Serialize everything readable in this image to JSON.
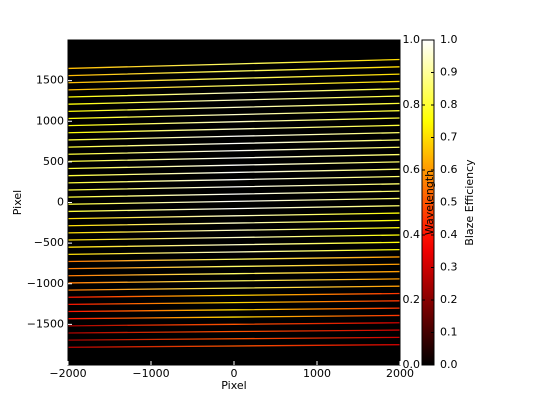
{
  "chart_data": {
    "type": "line",
    "x_label": "Pixel",
    "y_label": "Pixel",
    "x": [
      -2000,
      0,
      2000
    ],
    "xlim": [
      -2000,
      2000
    ],
    "xticks": [
      {
        "value": -2000,
        "label": "−2000"
      },
      {
        "value": -1000,
        "label": "−1000"
      },
      0,
      1000,
      2000
    ],
    "ylim": [
      -2000,
      2000
    ],
    "yticks": [
      {
        "value": -1500,
        "label": "−1500"
      },
      {
        "value": -1000,
        "label": "−1000"
      },
      {
        "value": -500,
        "label": "−500"
      },
      0,
      500,
      1000,
      1500
    ],
    "background": "#000000",
    "colormap": "hot",
    "series": [
      {
        "values": [
          1650,
          1705,
          1760
        ],
        "efficiency": [
          0.65,
          0.85,
          0.7
        ]
      },
      {
        "values": [
          1562,
          1616,
          1670
        ],
        "efficiency": [
          0.65,
          0.85,
          0.7
        ]
      },
      {
        "values": [
          1474,
          1527,
          1580
        ],
        "efficiency": [
          0.65,
          0.85,
          0.7
        ]
      },
      {
        "values": [
          1386,
          1438,
          1490
        ],
        "efficiency": [
          0.65,
          0.85,
          0.7
        ]
      },
      {
        "values": [
          1298,
          1349,
          1400
        ],
        "efficiency": [
          0.75,
          0.95,
          0.8
        ]
      },
      {
        "values": [
          1210,
          1260,
          1310
        ],
        "efficiency": [
          0.75,
          0.95,
          0.8
        ]
      },
      {
        "values": [
          1122,
          1171,
          1220
        ],
        "efficiency": [
          0.75,
          0.95,
          0.8
        ]
      },
      {
        "values": [
          1034,
          1082,
          1130
        ],
        "efficiency": [
          0.75,
          0.95,
          0.8
        ]
      },
      {
        "values": [
          946,
          993,
          1040
        ],
        "efficiency": [
          0.75,
          0.95,
          0.8
        ]
      },
      {
        "values": [
          858,
          904,
          950
        ],
        "efficiency": [
          0.75,
          0.95,
          0.8
        ]
      },
      {
        "values": [
          770,
          815,
          860
        ],
        "efficiency": [
          0.8,
          1.0,
          0.85
        ]
      },
      {
        "values": [
          682,
          726,
          770
        ],
        "efficiency": [
          0.8,
          1.0,
          0.85
        ]
      },
      {
        "values": [
          594,
          637,
          680
        ],
        "efficiency": [
          0.8,
          1.0,
          0.85
        ]
      },
      {
        "values": [
          506,
          548,
          590
        ],
        "efficiency": [
          0.8,
          1.0,
          0.85
        ]
      },
      {
        "values": [
          418,
          459,
          500
        ],
        "efficiency": [
          0.8,
          1.0,
          0.85
        ]
      },
      {
        "values": [
          330,
          370,
          410
        ],
        "efficiency": [
          0.8,
          1.0,
          0.85
        ]
      },
      {
        "values": [
          242,
          281,
          320
        ],
        "efficiency": [
          0.8,
          1.0,
          0.85
        ]
      },
      {
        "values": [
          154,
          192,
          230
        ],
        "efficiency": [
          0.8,
          1.0,
          0.85
        ]
      },
      {
        "values": [
          66,
          103,
          140
        ],
        "efficiency": [
          0.8,
          1.0,
          0.85
        ]
      },
      {
        "values": [
          -22,
          14,
          50
        ],
        "efficiency": [
          0.8,
          1.0,
          0.85
        ]
      },
      {
        "values": [
          -110,
          -75,
          -40
        ],
        "efficiency": [
          0.8,
          1.0,
          0.85
        ]
      },
      {
        "values": [
          -198,
          -164,
          -130
        ],
        "efficiency": [
          0.7,
          0.95,
          0.75
        ]
      },
      {
        "values": [
          -286,
          -253,
          -220
        ],
        "efficiency": [
          0.7,
          0.95,
          0.75
        ]
      },
      {
        "values": [
          -374,
          -342,
          -310
        ],
        "efficiency": [
          0.7,
          0.95,
          0.75
        ]
      },
      {
        "values": [
          -462,
          -431,
          -400
        ],
        "efficiency": [
          0.7,
          0.95,
          0.75
        ]
      },
      {
        "values": [
          -550,
          -520,
          -490
        ],
        "efficiency": [
          0.7,
          0.95,
          0.75
        ]
      },
      {
        "values": [
          -638,
          -609,
          -580
        ],
        "efficiency": [
          0.7,
          0.95,
          0.75
        ]
      },
      {
        "values": [
          -726,
          -698,
          -670
        ],
        "efficiency": [
          0.55,
          0.85,
          0.6
        ]
      },
      {
        "values": [
          -814,
          -787,
          -760
        ],
        "efficiency": [
          0.55,
          0.85,
          0.6
        ]
      },
      {
        "values": [
          -902,
          -876,
          -850
        ],
        "efficiency": [
          0.55,
          0.85,
          0.6
        ]
      },
      {
        "values": [
          -990,
          -965,
          -940
        ],
        "efficiency": [
          0.55,
          0.85,
          0.6
        ]
      },
      {
        "values": [
          -1078,
          -1054,
          -1030
        ],
        "efficiency": [
          0.55,
          0.85,
          0.6
        ]
      },
      {
        "values": [
          -1166,
          -1143,
          -1120
        ],
        "efficiency": [
          0.4,
          0.7,
          0.45
        ]
      },
      {
        "values": [
          -1254,
          -1232,
          -1210
        ],
        "efficiency": [
          0.4,
          0.7,
          0.45
        ]
      },
      {
        "values": [
          -1342,
          -1321,
          -1300
        ],
        "efficiency": [
          0.4,
          0.7,
          0.45
        ]
      },
      {
        "values": [
          -1430,
          -1410,
          -1390
        ],
        "efficiency": [
          0.4,
          0.7,
          0.45
        ]
      },
      {
        "values": [
          -1518,
          -1499,
          -1480
        ],
        "efficiency": [
          0.25,
          0.5,
          0.3
        ]
      },
      {
        "values": [
          -1606,
          -1588,
          -1570
        ],
        "efficiency": [
          0.25,
          0.5,
          0.3
        ]
      },
      {
        "values": [
          -1694,
          -1677,
          -1660
        ],
        "efficiency": [
          0.25,
          0.5,
          0.3
        ]
      },
      {
        "values": [
          -1782,
          -1766,
          -1750
        ],
        "efficiency": [
          0.25,
          0.5,
          0.3
        ]
      }
    ],
    "colorbar": {
      "label": "Blaze Efficiency",
      "lim": [
        0,
        1
      ],
      "ticks": [
        {
          "value": 0,
          "label": "0.0"
        },
        {
          "value": 0.1,
          "label": "0.1"
        },
        {
          "value": 0.2,
          "label": "0.2"
        },
        {
          "value": 0.3,
          "label": "0.3"
        },
        {
          "value": 0.4,
          "label": "0.4"
        },
        {
          "value": 0.5,
          "label": "0.5"
        },
        {
          "value": 0.6,
          "label": "0.6"
        },
        {
          "value": 0.7,
          "label": "0.7"
        },
        {
          "value": 0.8,
          "label": "0.8"
        },
        {
          "value": 0.9,
          "label": "0.9"
        },
        {
          "value": 1,
          "label": "1.0"
        }
      ],
      "twin_label": "Wavelength",
      "twin_label_color": "#8b0000",
      "twin_lim": [
        0,
        1
      ],
      "twin_ticks": [
        {
          "value": 0,
          "label": "0.0"
        },
        {
          "value": 0.2,
          "label": "0.2"
        },
        {
          "value": 0.4,
          "label": "0.4"
        },
        {
          "value": 0.6,
          "label": "0.6"
        },
        {
          "value": 0.8,
          "label": "0.8"
        },
        {
          "value": 1,
          "label": "1.0"
        }
      ]
    }
  }
}
